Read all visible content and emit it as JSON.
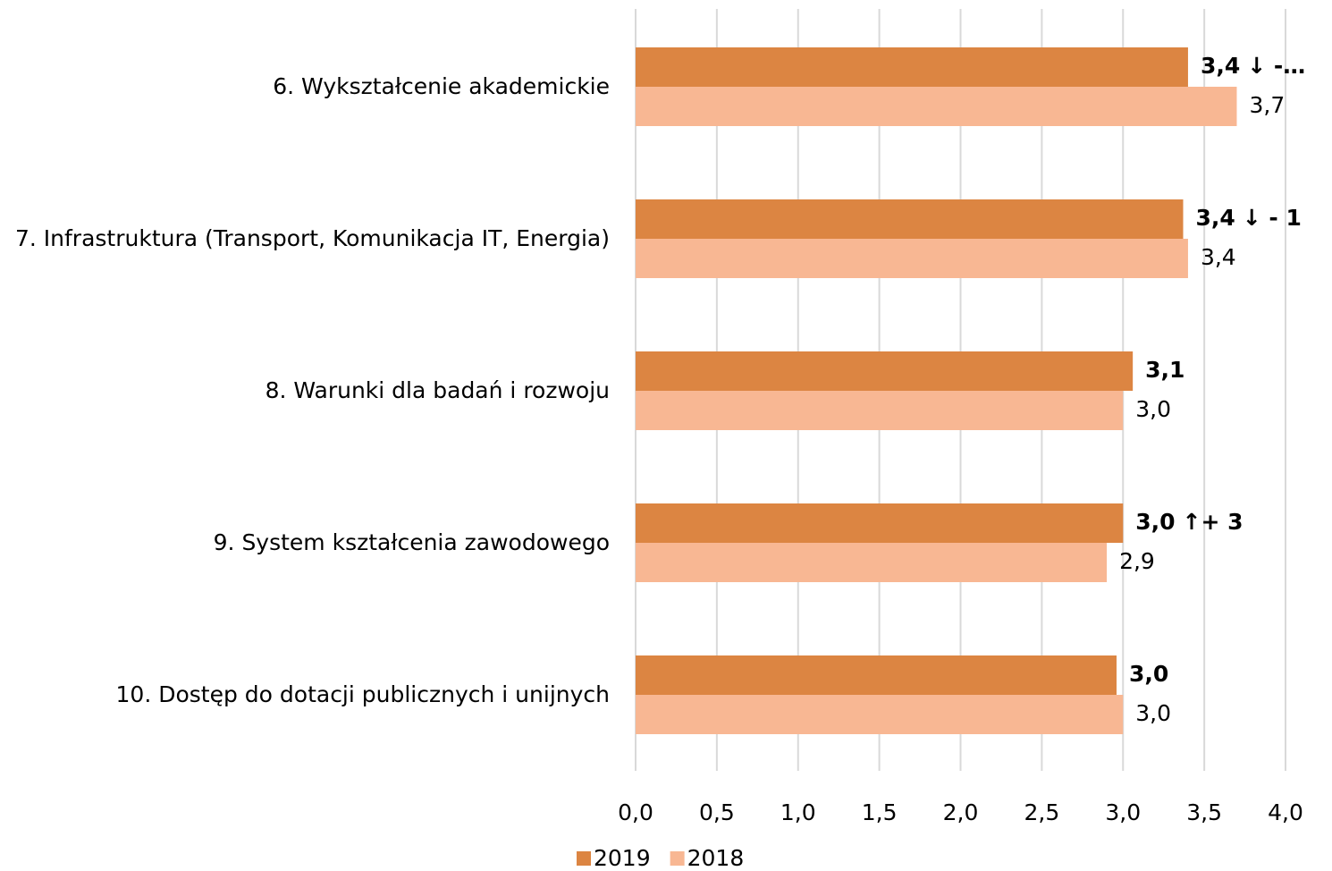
{
  "chart_data": {
    "type": "barh",
    "categories": [
      "6. Wykształcenie akademickie",
      "7. Infrastruktura (Transport, Komunikacja IT, Energia)",
      "8. Warunki dla badań i rozwoju",
      "9. System kształcenia zawodowego",
      "10. Dostęp do dotacji publicznych i unijnych"
    ],
    "series": [
      {
        "name": "2019",
        "color": "#dc8542",
        "values": [
          3.4,
          3.37,
          3.06,
          3.0,
          2.96
        ],
        "value_labels": [
          "3,4",
          "3,4",
          "3,1",
          "3,0",
          "3,0"
        ]
      },
      {
        "name": "2018",
        "color": "#f8b793",
        "values": [
          3.7,
          3.4,
          3.0,
          2.9,
          3.0
        ],
        "value_labels": [
          "3,7",
          "3,4",
          "3,0",
          "2,9",
          "3,0"
        ]
      }
    ],
    "annotations": [
      "↓ -…",
      "↓ - 1",
      null,
      "↑+ 3",
      null
    ],
    "annotation_colors": [
      "#ff0000",
      "#ff0000",
      null,
      "#00b050",
      null
    ],
    "xlim": [
      0,
      4
    ],
    "xticks": [
      {
        "value": 0,
        "label": "0,0"
      },
      {
        "value": 0.5,
        "label": "0,5"
      },
      {
        "value": 1,
        "label": "1,0"
      },
      {
        "value": 1.5,
        "label": "1,5"
      },
      {
        "value": 2,
        "label": "2,0"
      },
      {
        "value": 2.5,
        "label": "2,5"
      },
      {
        "value": 3,
        "label": "3,0"
      },
      {
        "value": 3.5,
        "label": "3,5"
      },
      {
        "value": 4,
        "label": "4,0"
      }
    ],
    "grid": true,
    "legend": "bottom"
  }
}
